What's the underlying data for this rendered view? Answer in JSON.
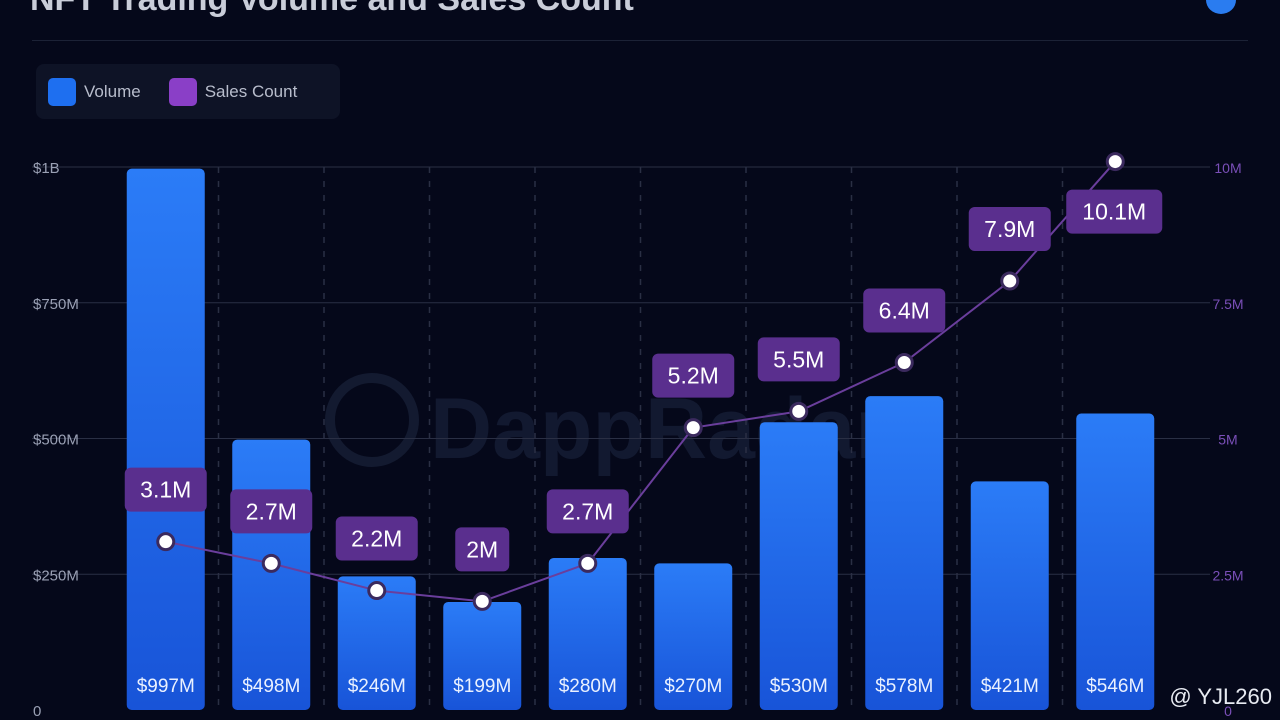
{
  "title": "NFT Trading Volume and Sales Count",
  "legend": [
    {
      "label": "Volume",
      "color": "#1e6ff0"
    },
    {
      "label": "Sales Count",
      "color": "#8a3fc7"
    }
  ],
  "watermark": "DappRadar",
  "credit": "@ YJL260",
  "chart_data": {
    "type": "bar",
    "title": "NFT Trading Volume and Sales Count",
    "series": [
      {
        "name": "Volume",
        "type": "bar",
        "axis": "left",
        "values": [
          997,
          498,
          246,
          199,
          280,
          270,
          530,
          578,
          421,
          546
        ],
        "value_labels": [
          "$997M",
          "$498M",
          "$246M",
          "$199M",
          "$280M",
          "$270M",
          "$530M",
          "$578M",
          "$421M",
          "$546M"
        ]
      },
      {
        "name": "Sales Count",
        "type": "line",
        "axis": "right",
        "values": [
          3.1,
          2.7,
          2.2,
          2.0,
          2.7,
          5.2,
          5.5,
          6.4,
          7.9,
          10.1
        ],
        "value_labels": [
          "3.1M",
          "2.7M",
          "2.2M",
          "2M",
          "2.7M",
          "5.2M",
          "5.5M",
          "6.4M",
          "7.9M",
          "10.1M"
        ]
      }
    ],
    "left_axis": {
      "ylim": [
        0,
        1000
      ],
      "ticks": [
        0,
        250,
        500,
        750,
        1000
      ],
      "tick_labels": [
        "0",
        "$250M",
        "$500M",
        "$750M",
        "$1B"
      ]
    },
    "right_axis": {
      "ylim": [
        0,
        10
      ],
      "ticks": [
        0,
        2.5,
        5,
        7.5,
        10
      ],
      "tick_labels": [
        "0",
        "2.5M",
        "5M",
        "7.5M",
        "10M"
      ]
    },
    "colors": {
      "bar_top": "#2b7cf7",
      "bar_bottom": "#1854d8",
      "line": "#6a3e9c",
      "point": "#ffffff",
      "label_bg": "#5a2f8e",
      "label_text": "#ffffff",
      "grid": "#2a2f44",
      "left_tick": "#9aa0b4",
      "right_tick": "#7a4fb8"
    }
  }
}
